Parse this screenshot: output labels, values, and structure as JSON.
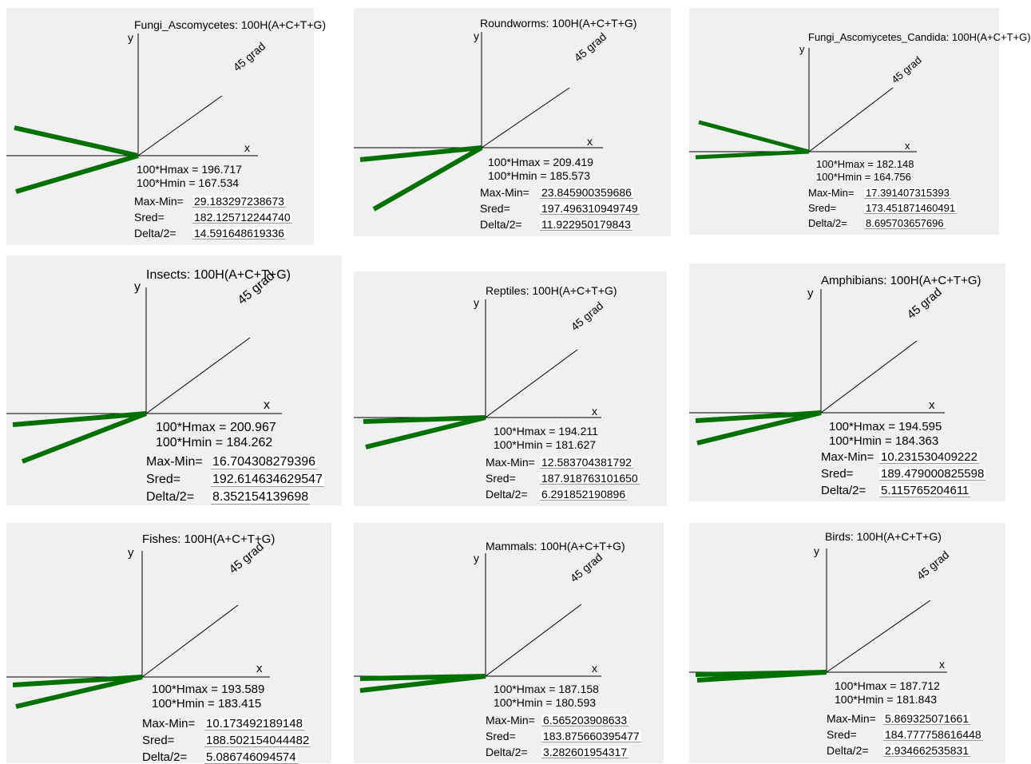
{
  "labels": {
    "y": "y",
    "x": "x",
    "diag": "45 grad",
    "hmax_prefix": "100*Hmax = ",
    "hmin_prefix": "100*Hmin = ",
    "maxmin": "Max-Min=",
    "sred": "Sred=",
    "delta": "Delta/2="
  },
  "line_color": "#007000",
  "panels": [
    {
      "title": "Fungi_Ascomycetes: 100H(A+C+T+G)",
      "hmax": "196.717",
      "hmin": "167.534",
      "maxmin": "29.183297238673",
      "sred": "182.125712244740",
      "delta": "14.591648619336"
    },
    {
      "title": "Roundworms: 100H(A+C+T+G)",
      "hmax": "209.419",
      "hmin": "185.573",
      "maxmin": "23.845900359686",
      "sred": "197.496310949749",
      "delta": "11.922950179843"
    },
    {
      "title": "Fungi_Ascomycetes_Candida: 100H(A+C+T+G)",
      "hmax": "182.148",
      "hmin": "164.756",
      "maxmin": "17.391407315393",
      "sred": "173.451871460491",
      "delta": "8.695703657696"
    },
    {
      "title": "Insects: 100H(A+C+T+G)",
      "hmax": "200.967",
      "hmin": "184.262",
      "maxmin": "16.704308279396",
      "sred": "192.614634629547",
      "delta": "8.352154139698"
    },
    {
      "title": "Reptiles: 100H(A+C+T+G)",
      "hmax": "194.211",
      "hmin": "181.627",
      "maxmin": "12.583704381792",
      "sred": "187.918763101650",
      "delta": "6.291852190896"
    },
    {
      "title": "Amphibians: 100H(A+C+T+G)",
      "hmax": "194.595",
      "hmin": "184.363",
      "maxmin": "10.231530409222",
      "sred": "189.479000825598",
      "delta": "5.115765204611"
    },
    {
      "title": "Fishes: 100H(A+C+T+G)",
      "hmax": "193.589",
      "hmin": "183.415",
      "maxmin": "10.173492189148",
      "sred": "188.502154044482",
      "delta": "5.086746094574"
    },
    {
      "title": "Mammals: 100H(A+C+T+G)",
      "hmax": "187.158",
      "hmin": "180.593",
      "maxmin": "6.565203908633",
      "sred": "183.875660395477",
      "delta": "3.282601954317"
    },
    {
      "title": "Birds: 100H(A+C+T+G)",
      "hmax": "187.712",
      "hmin": "181.843",
      "maxmin": "5.869325071661",
      "sred": "184.777758616448",
      "delta": "2.934662535831"
    }
  ]
}
